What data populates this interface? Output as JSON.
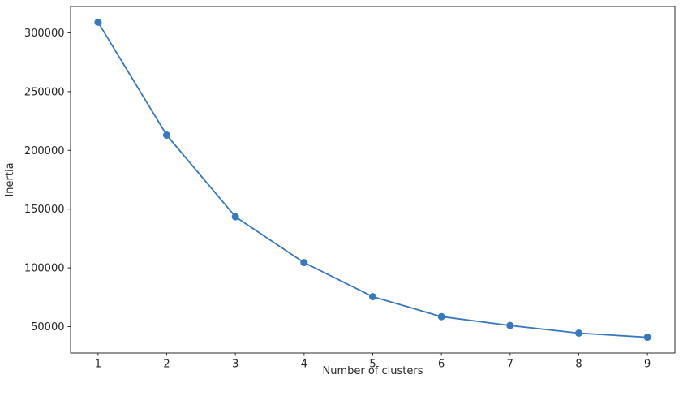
{
  "figure": {
    "background": "#ffffff"
  },
  "chart_data": {
    "type": "line",
    "title": "",
    "xlabel": "Number of clusters",
    "ylabel": "Inertia",
    "x": [
      1,
      2,
      3,
      4,
      5,
      6,
      7,
      8,
      9
    ],
    "series": [
      {
        "name": "inertia",
        "values": [
          309000,
          213000,
          143500,
          104500,
          75500,
          58500,
          51000,
          44500,
          41000
        ],
        "color": "#3778bf",
        "marker": "circle"
      }
    ],
    "xticks": [
      1,
      2,
      3,
      4,
      5,
      6,
      7,
      8,
      9
    ],
    "yticks": [
      50000,
      100000,
      150000,
      200000,
      250000,
      300000
    ],
    "xlim": [
      0.6,
      9.4
    ],
    "ylim": [
      27600,
      322400
    ],
    "grid": false,
    "legend_position": "none",
    "spine_color": "#2b2b2b",
    "tick_color": "#2b2b2b",
    "text_color": "#262626",
    "marker_radius": 4.5,
    "line_width": 1.8
  }
}
